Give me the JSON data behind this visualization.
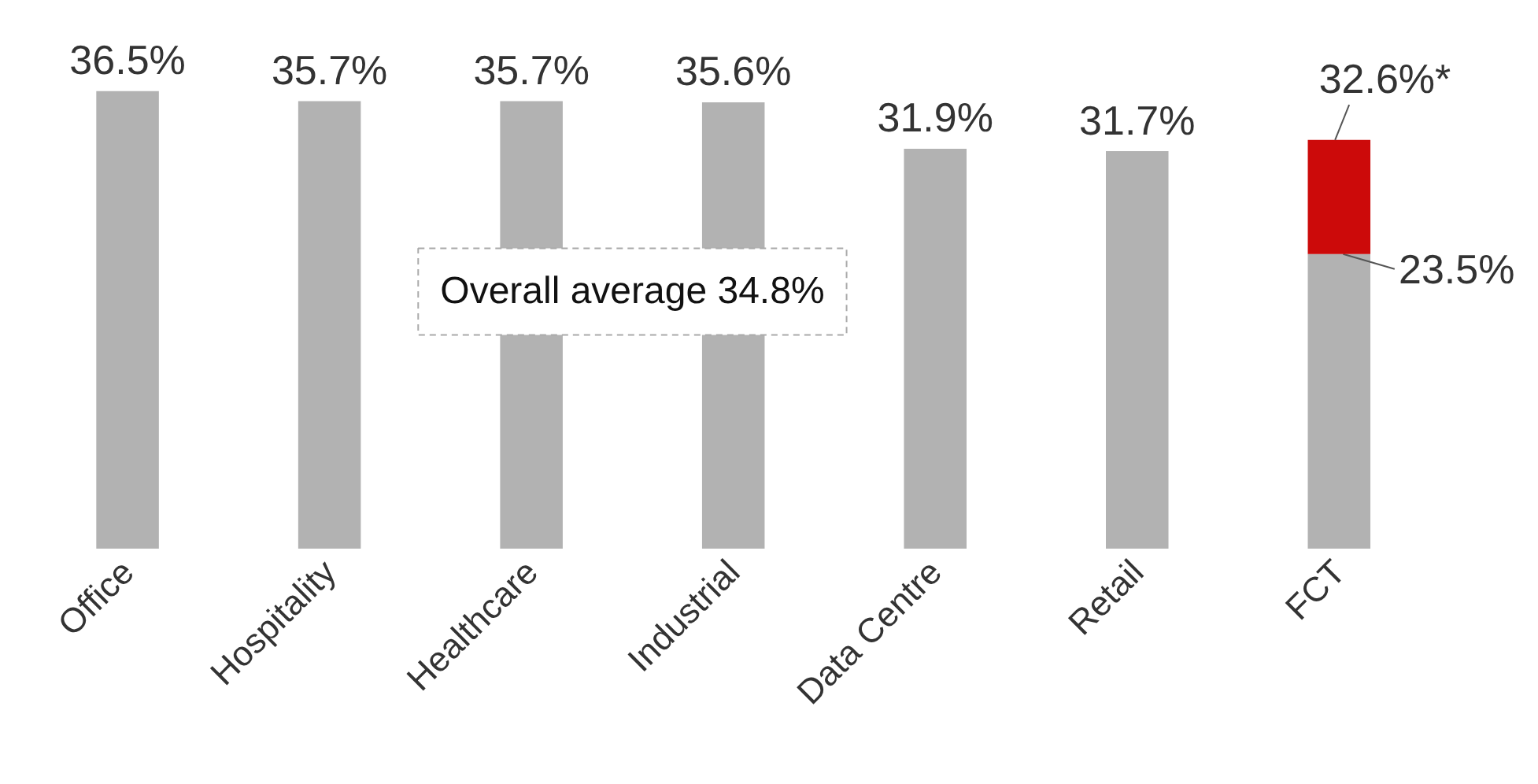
{
  "chart_data": {
    "type": "bar",
    "stacked": true,
    "categories": [
      "Office",
      "Hospitality",
      "Healthcare",
      "Industrial",
      "Data Centre",
      "Retail",
      "FCT"
    ],
    "series": [
      {
        "color": "#b2b2b2",
        "values": [
          36.5,
          35.7,
          35.7,
          35.6,
          31.9,
          31.7,
          23.5
        ],
        "value_labels": [
          "36.5%",
          "35.7%",
          "35.7%",
          "35.6%",
          "31.9%",
          "31.7%",
          "23.5%"
        ]
      },
      {
        "color": "#cc0a0a",
        "values": [
          null,
          null,
          null,
          null,
          null,
          null,
          9.1
        ]
      }
    ],
    "totals": [
      null,
      null,
      null,
      null,
      null,
      null,
      "32.6%*"
    ],
    "tick_labels": "x",
    "grid": false,
    "annotations": [
      "Overall average 34.8%"
    ]
  }
}
